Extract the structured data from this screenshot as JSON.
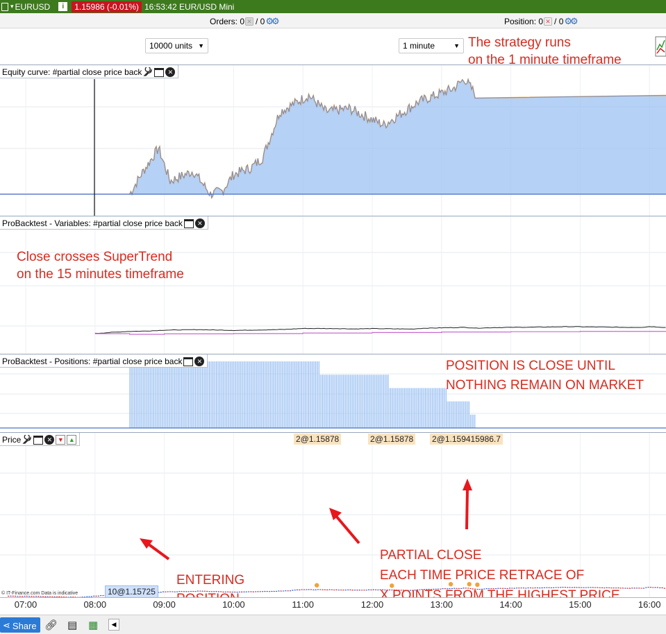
{
  "titlebar": {
    "symbol": "EURUSD",
    "info_label": "i",
    "price_change": "1.15986 (-0.01%)",
    "time_label": "16:53:42 EUR/USD Mini"
  },
  "orders_bar": {
    "orders_label": "Orders: 0",
    "orders_count": "/ 0",
    "position_label": "Position: 0",
    "position_count": "/ 0"
  },
  "toolbar": {
    "units_select": "10000 units",
    "timeframe_select": "1 minute"
  },
  "annotations": {
    "top_right_line1": "The strategy runs",
    "top_right_line2": "on the 1 minute timeframe",
    "variables_line1": "Close crosses SuperTrend",
    "variables_line2": "on the 15 minutes timeframe",
    "positions_line1": "POSITION IS CLOSE UNTIL",
    "positions_line2": "NOTHING REMAIN ON MARKET",
    "entering_line1": "ENTERING",
    "entering_line2": "POSITION",
    "partial_line1": "PARTIAL CLOSE",
    "partial_line2": "EACH TIME PRICE RETRACE OF",
    "partial_line3": "X POINTS FROM THE HIGHEST PRICE"
  },
  "panels": {
    "equity_title": "Equity curve: #partial close price back",
    "variables_title": "ProBacktest - Variables: #partial close price back",
    "positions_title": "ProBacktest - Positions: #partial close price back",
    "price_title": "Price"
  },
  "order_chips": {
    "chip1": "2@1.15878",
    "chip2": "2@1.15878",
    "chip3": "2@1.159415986.7",
    "entry_chip": "10@1.15725"
  },
  "footer": {
    "source": "© IT-Finance.com  Data is indicative",
    "share_label": "Share"
  },
  "colors": {
    "titlebar_bg": "#3d7a1e",
    "price_down_chip": "#c8141e",
    "annotation_red": "#d92b1f",
    "equity_fill": "#9cc2f2",
    "equity_line_up": "#6a8fd6",
    "equity_line_down": "#f0a23c",
    "supertrend": "#c86ad0",
    "positions_bar": "#9cc2f2",
    "candle_up": "#2a56c8",
    "candle_down": "#d02020"
  },
  "chart_data": {
    "type": "line",
    "x_ticks": [
      "07:00",
      "08:00",
      "09:00",
      "10:00",
      "11:00",
      "12:00",
      "13:00",
      "14:00",
      "15:00",
      "16:00"
    ],
    "price_series": [
      {
        "t": "06:45",
        "close": 1.15705
      },
      {
        "t": "07:00",
        "close": 1.15702
      },
      {
        "t": "07:30",
        "close": 1.15694
      },
      {
        "t": "07:45",
        "close": 1.15688
      },
      {
        "t": "08:00",
        "close": 1.15704
      },
      {
        "t": "08:15",
        "close": 1.15722
      },
      {
        "t": "08:30",
        "close": 1.15738
      },
      {
        "t": "08:45",
        "close": 1.15744
      },
      {
        "t": "09:00",
        "close": 1.15759
      },
      {
        "t": "09:30",
        "close": 1.15768
      },
      {
        "t": "10:00",
        "close": 1.15755
      },
      {
        "t": "10:30",
        "close": 1.15765
      },
      {
        "t": "10:45",
        "close": 1.15772
      },
      {
        "t": "11:00",
        "close": 1.15788
      },
      {
        "t": "11:30",
        "close": 1.15786
      },
      {
        "t": "11:45",
        "close": 1.1578
      },
      {
        "t": "12:00",
        "close": 1.15786
      },
      {
        "t": "12:20",
        "close": 1.15781
      },
      {
        "t": "12:35",
        "close": 1.15778
      },
      {
        "t": "12:45",
        "close": 1.15792
      },
      {
        "t": "13:00",
        "close": 1.15798
      },
      {
        "t": "13:20",
        "close": 1.15806
      },
      {
        "t": "13:30",
        "close": 1.15794
      },
      {
        "t": "13:45",
        "close": 1.15802
      },
      {
        "t": "14:00",
        "close": 1.15806
      },
      {
        "t": "14:30",
        "close": 1.15812
      },
      {
        "t": "14:50",
        "close": 1.15818
      },
      {
        "t": "15:15",
        "close": 1.15813
      },
      {
        "t": "15:40",
        "close": 1.15806
      },
      {
        "t": "15:55",
        "close": 1.15808
      },
      {
        "t": "16:00",
        "close": 1.1582
      },
      {
        "t": "16:15",
        "close": 1.15803
      }
    ],
    "supertrend_series": [
      {
        "t": "08:00",
        "value": 1.157
      },
      {
        "t": "08:30",
        "value": 1.157
      },
      {
        "t": "08:30",
        "value": 1.15688
      },
      {
        "t": "08:45",
        "value": 1.15688
      },
      {
        "t": "09:00",
        "value": 1.15697
      },
      {
        "t": "10:00",
        "value": 1.15701
      },
      {
        "t": "11:00",
        "value": 1.1571
      },
      {
        "t": "12:00",
        "value": 1.15719
      },
      {
        "t": "13:00",
        "value": 1.15728
      },
      {
        "t": "14:00",
        "value": 1.15733
      },
      {
        "t": "15:00",
        "value": 1.15738
      },
      {
        "t": "16:15",
        "value": 1.1574
      }
    ],
    "position_size": [
      {
        "t": "08:30",
        "units": 10
      },
      {
        "t": "11:15",
        "units": 8
      },
      {
        "t": "12:15",
        "units": 6
      },
      {
        "t": "13:05",
        "units": 4
      },
      {
        "t": "13:25",
        "units": 2
      },
      {
        "t": "13:30",
        "units": 0
      }
    ],
    "equity_series": [
      {
        "t": "08:30",
        "value": 0
      },
      {
        "t": "08:40",
        "value": 30
      },
      {
        "t": "08:55",
        "value": 70
      },
      {
        "t": "09:05",
        "value": 20
      },
      {
        "t": "09:25",
        "value": 35
      },
      {
        "t": "09:40",
        "value": 0
      },
      {
        "t": "09:50",
        "value": 5
      },
      {
        "t": "10:00",
        "value": 30
      },
      {
        "t": "10:15",
        "value": 40
      },
      {
        "t": "10:25",
        "value": 55
      },
      {
        "t": "10:40",
        "value": 125
      },
      {
        "t": "11:05",
        "value": 150
      },
      {
        "t": "11:20",
        "value": 125
      },
      {
        "t": "11:40",
        "value": 130
      },
      {
        "t": "12:10",
        "value": 105
      },
      {
        "t": "12:40",
        "value": 140
      },
      {
        "t": "13:10",
        "value": 160
      },
      {
        "t": "13:20",
        "value": 175
      },
      {
        "t": "13:30",
        "value": 150
      },
      {
        "t": "16:15",
        "value": 150
      }
    ]
  }
}
